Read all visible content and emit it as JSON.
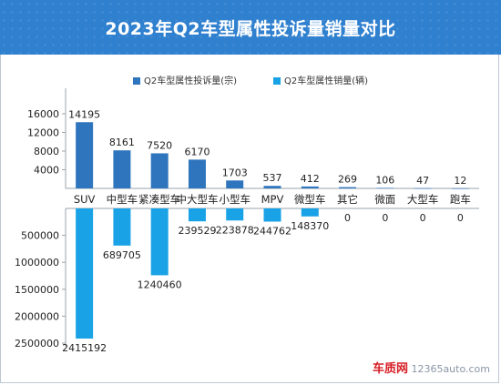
{
  "chart_data": {
    "type": "bar",
    "title": "2023年Q2车型属性投诉量销量对比",
    "categories": [
      "SUV",
      "中型车",
      "紧凑型车",
      "中大型车",
      "小型车",
      "MPV",
      "微型车",
      "其它",
      "微面",
      "大型车",
      "跑车"
    ],
    "series": [
      {
        "name": "Q2车型属性投诉量(宗)",
        "values": [
          14195,
          8161,
          7520,
          6170,
          1703,
          537,
          412,
          269,
          106,
          47,
          12
        ],
        "color": "#2f75bd"
      },
      {
        "name": "Q2车型属性销量(辆)",
        "values": [
          2415192,
          689705,
          1240460,
          239529,
          223878,
          244762,
          148370,
          0,
          0,
          0,
          0
        ],
        "color": "#19a2e6"
      }
    ],
    "upper_axis": {
      "ylim": [
        0,
        16000
      ],
      "ticks": [
        "16000",
        "12000",
        "8000",
        "4000"
      ]
    },
    "lower_axis": {
      "ylim": [
        0,
        2500000
      ],
      "ticks": [
        "500000",
        "1000000",
        "1500000",
        "2000000",
        "2500000"
      ],
      "inverted": true
    },
    "legend_position": "top"
  },
  "watermark": {
    "logo": "车质网",
    "url": "12365auto.com"
  }
}
